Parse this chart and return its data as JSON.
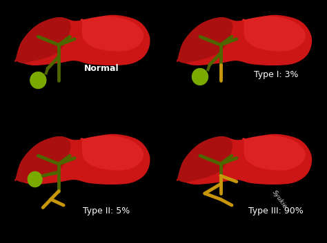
{
  "background_color": "#000000",
  "text_color": "#ffffff",
  "liver_color_main": "#cc1515",
  "liver_color_left_lobe": "#aa1010",
  "liver_color_highlight": "#dd2222",
  "bile_duct_color": "#4d6600",
  "gallbladder_color": "#7aaa00",
  "bile_yellow_color": "#c8960a",
  "labels": [
    "Normal",
    "Type I: 3%",
    "Type II: 5%",
    "Type III: 90%"
  ],
  "watermark": "Syukie",
  "figsize": [
    4.74,
    3.53
  ],
  "dpi": 100
}
